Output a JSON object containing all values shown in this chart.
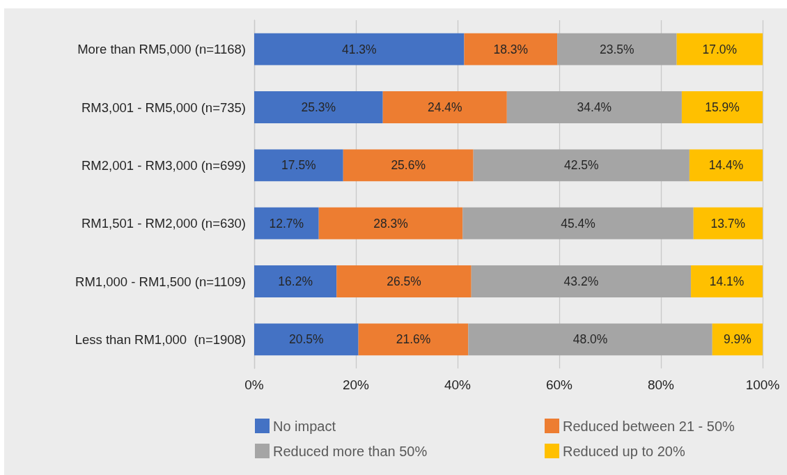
{
  "chart_data": {
    "type": "bar",
    "orientation": "horizontal",
    "stacked": true,
    "categories": [
      "More than RM5,000 (n=1168)",
      "RM3,001 - RM5,000 (n=735)",
      "RM2,001 - RM3,000 (n=699)",
      "RM1,501 - RM2,000 (n=630)",
      "RM1,000 - RM1,500 (n=1109)",
      "Less than RM1,000  (n=1908)"
    ],
    "series": [
      {
        "name": "No impact",
        "color": "#4472c4",
        "values": [
          41.3,
          25.3,
          17.5,
          12.7,
          16.2,
          20.5
        ],
        "value_labels": [
          "41.3%",
          "25.3%",
          "17.5%",
          "12.7%",
          "16.2%",
          "20.5%"
        ]
      },
      {
        "name": "Reduced between 21 - 50%",
        "color": "#ed7d31",
        "values": [
          18.3,
          24.4,
          25.6,
          28.3,
          26.5,
          21.6
        ],
        "value_labels": [
          "18.3%",
          "24.4%",
          "25.6%",
          "28.3%",
          "26.5%",
          "21.6%"
        ]
      },
      {
        "name": "Reduced more than 50%",
        "color": "#a5a5a5",
        "values": [
          23.5,
          34.4,
          42.5,
          45.4,
          43.2,
          48.0
        ],
        "value_labels": [
          "23.5%",
          "34.4%",
          "42.5%",
          "45.4%",
          "43.2%",
          "48.0%"
        ]
      },
      {
        "name": "Reduced up to 20%",
        "color": "#ffc000",
        "values": [
          17.0,
          15.9,
          14.4,
          13.7,
          14.1,
          9.9
        ],
        "value_labels": [
          "17.0%",
          "15.9%",
          "14.4%",
          "13.7%",
          "14.1%",
          "9.9%"
        ]
      }
    ],
    "xlim": [
      0,
      100
    ],
    "xticks": [
      {
        "value": 0,
        "label": "0%"
      },
      {
        "value": 20,
        "label": "20%"
      },
      {
        "value": 40,
        "label": "40%"
      },
      {
        "value": 60,
        "label": "60%"
      },
      {
        "value": 80,
        "label": "80%"
      },
      {
        "value": 100,
        "label": "100%"
      }
    ],
    "grid": "x",
    "legend": "bottom"
  }
}
